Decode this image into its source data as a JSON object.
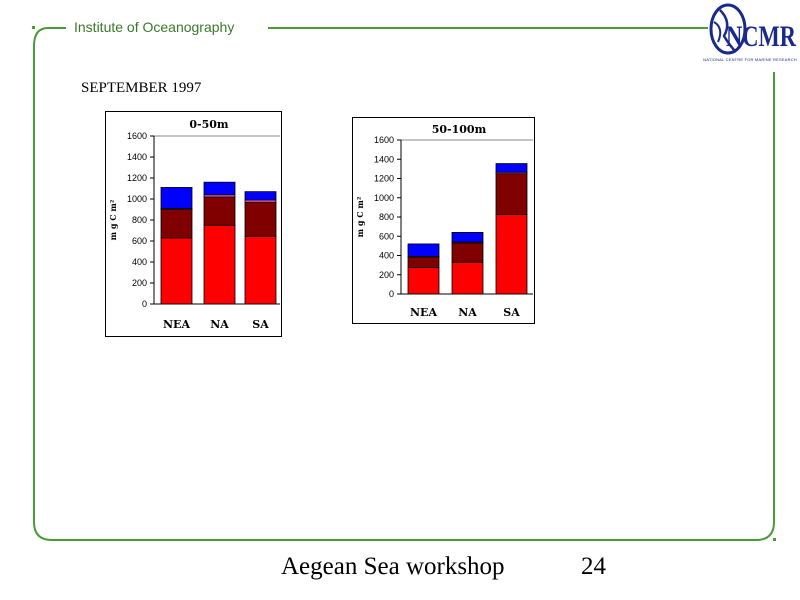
{
  "header": {
    "institute": "Institute of Oceanography",
    "logo_text": "NCMR",
    "logo_subtitle": "NATIONAL CENTRE FOR MARINE RESEARCH",
    "accent_color": "#4a9a3a"
  },
  "section_title": "SEPTEMBER 1997",
  "chart_data": [
    {
      "type": "bar",
      "stacked": true,
      "title": "0-50m",
      "ylabel": "m g C m²",
      "ylim": [
        0,
        1600
      ],
      "yticks": [
        "0",
        "200",
        "400",
        "600",
        "800",
        "1000",
        "1200",
        "1400",
        "1600"
      ],
      "categories": [
        "NEA",
        "NA",
        "SA"
      ],
      "grid": false,
      "series": [
        {
          "color": "#ff0000",
          "values": [
            630,
            750,
            645
          ]
        },
        {
          "color": "#800000",
          "values": [
            270,
            270,
            325
          ]
        },
        {
          "color": "#ff66cc",
          "values": [
            10,
            20,
            20
          ]
        },
        {
          "color": "#0000ff",
          "values": [
            200,
            120,
            80
          ]
        }
      ]
    },
    {
      "type": "bar",
      "stacked": true,
      "title": "50-100m",
      "ylabel": "m g C m²",
      "ylim": [
        0,
        1600
      ],
      "yticks": [
        "0",
        "200",
        "400",
        "600",
        "800",
        "1000",
        "1200",
        "1400",
        "1600"
      ],
      "categories": [
        "NEA",
        "NA",
        "SA"
      ],
      "grid": false,
      "series": [
        {
          "color": "#ff0000",
          "values": [
            275,
            330,
            825
          ]
        },
        {
          "color": "#800000",
          "values": [
            110,
            200,
            425
          ]
        },
        {
          "color": "#ff66cc",
          "values": [
            5,
            10,
            15
          ]
        },
        {
          "color": "#0000ff",
          "values": [
            130,
            100,
            90
          ]
        }
      ]
    }
  ],
  "footer": {
    "text": "Aegean Sea workshop",
    "page": "24"
  }
}
